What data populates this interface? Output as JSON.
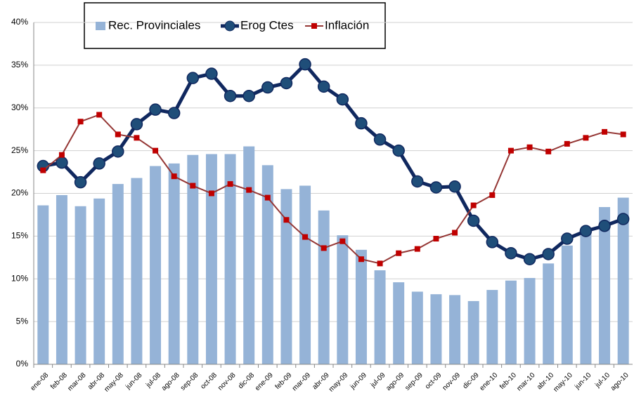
{
  "chart_data": {
    "type": "bar-line",
    "categories": [
      "ene-08",
      "feb-08",
      "mar-08",
      "abr-08",
      "may-08",
      "jun-08",
      "jul-08",
      "ago-08",
      "sep-08",
      "oct-08",
      "nov-08",
      "dic-08",
      "ene-09",
      "feb-09",
      "mar-09",
      "abr-09",
      "may-09",
      "jun-09",
      "jul-09",
      "ago-09",
      "sep-09",
      "oct-09",
      "nov-09",
      "dic-09",
      "ene-10",
      "feb-10",
      "mar-10",
      "abr-10",
      "may-10",
      "jun-10",
      "jul-10",
      "ago-10"
    ],
    "series": [
      {
        "name": "Rec. Provinciales",
        "type": "bar",
        "color": "#95b3d7",
        "values": [
          18.6,
          19.8,
          18.5,
          19.4,
          21.1,
          21.8,
          23.2,
          23.5,
          24.5,
          24.6,
          24.6,
          25.5,
          23.3,
          20.5,
          20.9,
          18.0,
          15.1,
          13.4,
          11.0,
          9.6,
          8.5,
          8.2,
          8.1,
          7.4,
          8.7,
          9.8,
          10.1,
          11.8,
          13.9,
          15.5,
          18.4,
          19.5
        ]
      },
      {
        "name": "Erog Ctes",
        "type": "line",
        "color": "#10285f",
        "marker": "circle",
        "marker_color": "#1f4e79",
        "values": [
          23.2,
          23.6,
          21.3,
          23.5,
          24.9,
          28.1,
          29.8,
          29.4,
          33.5,
          34.0,
          31.4,
          31.4,
          32.4,
          32.9,
          35.1,
          32.5,
          31.0,
          28.2,
          26.3,
          25.0,
          21.4,
          20.7,
          20.8,
          16.8,
          14.3,
          13.0,
          12.3,
          12.9,
          14.7,
          15.6,
          16.2,
          17.0
        ]
      },
      {
        "name": "Inflación",
        "type": "line",
        "color": "#953735",
        "marker": "square",
        "marker_color": "#c00000",
        "values": [
          22.7,
          24.5,
          28.4,
          29.2,
          26.9,
          26.5,
          25.0,
          22.0,
          20.9,
          20.0,
          21.1,
          20.4,
          19.5,
          16.9,
          14.9,
          13.6,
          14.4,
          12.3,
          11.8,
          13.0,
          13.5,
          14.7,
          15.4,
          18.6,
          19.8,
          25.0,
          25.4,
          24.9,
          25.8,
          26.5,
          27.2,
          26.9
        ]
      }
    ],
    "ylim": [
      0,
      40
    ],
    "yticks": [
      {
        "value": 0,
        "label": "0%"
      },
      {
        "value": 5,
        "label": "5%"
      },
      {
        "value": 10,
        "label": "10%"
      },
      {
        "value": 15,
        "label": "15%"
      },
      {
        "value": 20,
        "label": "20%"
      },
      {
        "value": 25,
        "label": "25%"
      },
      {
        "value": 30,
        "label": "30%"
      },
      {
        "value": 35,
        "label": "35%"
      },
      {
        "value": 40,
        "label": "40%"
      }
    ],
    "grid": true,
    "legend": "top"
  }
}
